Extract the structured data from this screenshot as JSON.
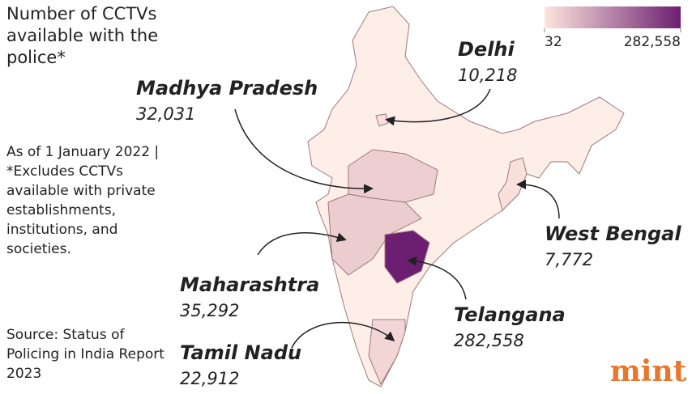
{
  "title": "Number of CCTVs available with the police*",
  "note": "As of 1 January 2022 | *Excludes CCTVs available with private establishments, institutions, and societies.",
  "source": "Source: Status of Policing in India Report 2023",
  "legend": {
    "range": [
      32,
      282558
    ],
    "colors": [
      "#fde6de",
      "#6c1f70"
    ],
    "ticks": [
      32,
      {
        "value": 282558,
        "label": "282,558"
      }
    ]
  },
  "states": [
    {
      "name": "Delhi",
      "value": 10218,
      "value_label": "10,218"
    },
    {
      "name": "Madhya Pradesh",
      "value": 32031,
      "value_label": "32,031"
    },
    {
      "name": "West Bengal",
      "value": 7772,
      "value_label": "7,772"
    },
    {
      "name": "Maharashtra",
      "value": 35292,
      "value_label": "35,292"
    },
    {
      "name": "Telangana",
      "value": 282558,
      "value_label": "282,558"
    },
    {
      "name": "Tamil Nadu",
      "value": 22912,
      "value_label": "22,912"
    }
  ],
  "brand": "mint"
}
